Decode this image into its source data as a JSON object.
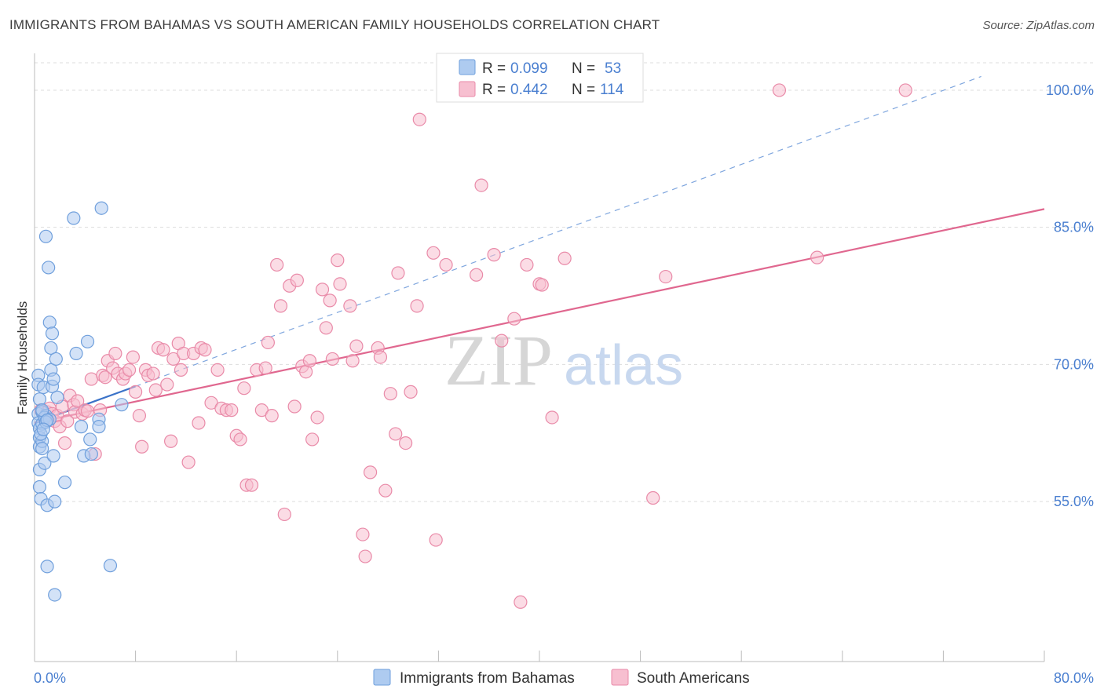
{
  "title": "IMMIGRANTS FROM BAHAMAS VS SOUTH AMERICAN FAMILY HOUSEHOLDS CORRELATION CHART",
  "source": "Source: ZipAtlas.com",
  "watermark": {
    "zip": "ZIP",
    "atlas": "atlas"
  },
  "colors": {
    "blue_fill": "#aecbf0",
    "blue_stroke": "#6f9fdc",
    "blue_line": "#3a72c8",
    "pink_fill": "#f7bfd0",
    "pink_stroke": "#e98aa8",
    "pink_line": "#e0678f",
    "grid": "#dddddd",
    "label": "#4a7fd0"
  },
  "legend": {
    "rows": [
      {
        "r_label": "R = ",
        "r_value": "0.099",
        "n_label": "N = ",
        "n_value": "53",
        "series": "blue"
      },
      {
        "r_label": "R = ",
        "r_value": "0.442",
        "n_label": "N = ",
        "n_value": "114",
        "series": "pink"
      }
    ]
  },
  "chart_data": {
    "type": "scatter",
    "title": "IMMIGRANTS FROM BAHAMAS VS SOUTH AMERICAN FAMILY HOUSEHOLDS CORRELATION CHART",
    "xlabel": "",
    "ylabel": "Family Households",
    "xlim": [
      0,
      80
    ],
    "ylim": [
      37.5,
      103
    ],
    "x_tick_labels": [
      "0.0%",
      "80.0%"
    ],
    "y_ticks": [
      55,
      70,
      85,
      100
    ],
    "y_tick_labels": [
      "55.0%",
      "70.0%",
      "85.0%",
      "100.0%"
    ],
    "legend_position": "top-center",
    "series": [
      {
        "name": "Immigrants from Bahamas",
        "color": "blue",
        "r": 0.099,
        "n": 53,
        "trend": {
          "x": [
            0,
            8
          ],
          "y": [
            63.6,
            67.6
          ],
          "style": "solid"
        },
        "trend_extension": {
          "x": [
            8,
            75
          ],
          "y": [
            67.6,
            101.5
          ],
          "style": "dashed"
        },
        "points": [
          [
            0.3,
            68.8
          ],
          [
            0.3,
            67.8
          ],
          [
            0.4,
            66.2
          ],
          [
            0.3,
            64.6
          ],
          [
            0.3,
            63.6
          ],
          [
            0.4,
            63.0
          ],
          [
            0.4,
            62.0
          ],
          [
            0.4,
            61.0
          ],
          [
            0.4,
            58.5
          ],
          [
            0.4,
            56.6
          ],
          [
            0.5,
            55.3
          ],
          [
            0.6,
            64.8
          ],
          [
            0.6,
            63.5
          ],
          [
            0.6,
            61.6
          ],
          [
            0.6,
            60.8
          ],
          [
            0.7,
            67.5
          ],
          [
            0.8,
            59.2
          ],
          [
            0.9,
            84.0
          ],
          [
            0.9,
            64.4
          ],
          [
            1.0,
            54.6
          ],
          [
            1.0,
            47.9
          ],
          [
            1.1,
            80.6
          ],
          [
            1.2,
            74.6
          ],
          [
            1.3,
            71.8
          ],
          [
            1.3,
            69.4
          ],
          [
            1.4,
            73.4
          ],
          [
            1.4,
            67.6
          ],
          [
            1.5,
            68.4
          ],
          [
            1.5,
            60.0
          ],
          [
            1.6,
            44.8
          ],
          [
            1.6,
            55.0
          ],
          [
            1.7,
            70.6
          ],
          [
            1.8,
            66.4
          ],
          [
            2.4,
            57.1
          ],
          [
            3.1,
            86.0
          ],
          [
            3.3,
            71.2
          ],
          [
            3.7,
            63.2
          ],
          [
            3.9,
            60.0
          ],
          [
            4.2,
            72.5
          ],
          [
            4.4,
            61.8
          ],
          [
            4.5,
            60.2
          ],
          [
            5.1,
            64.0
          ],
          [
            5.1,
            63.2
          ],
          [
            5.3,
            87.1
          ],
          [
            6.0,
            48.0
          ],
          [
            6.9,
            65.6
          ],
          [
            0.5,
            62.4
          ],
          [
            0.8,
            64.2
          ],
          [
            1.2,
            64.0
          ],
          [
            0.9,
            63.7
          ],
          [
            0.6,
            65.0
          ],
          [
            1.0,
            63.9
          ],
          [
            0.7,
            62.9
          ]
        ]
      },
      {
        "name": "South Americans",
        "color": "pink",
        "r": 0.442,
        "n": 114,
        "trend": {
          "x": [
            0,
            80
          ],
          "y": [
            63.6,
            87.0
          ],
          "style": "solid"
        },
        "points": [
          [
            0.5,
            65.0
          ],
          [
            0.8,
            64.0
          ],
          [
            1.0,
            64.8
          ],
          [
            1.2,
            65.2
          ],
          [
            1.4,
            64.6
          ],
          [
            1.6,
            63.8
          ],
          [
            1.8,
            64.4
          ],
          [
            2.0,
            63.2
          ],
          [
            2.2,
            65.4
          ],
          [
            2.4,
            61.4
          ],
          [
            2.8,
            66.6
          ],
          [
            3.1,
            65.6
          ],
          [
            3.2,
            64.8
          ],
          [
            3.4,
            66.0
          ],
          [
            3.8,
            64.6
          ],
          [
            4.0,
            65.0
          ],
          [
            4.2,
            64.9
          ],
          [
            4.5,
            68.4
          ],
          [
            4.8,
            60.2
          ],
          [
            5.2,
            65.0
          ],
          [
            5.4,
            68.8
          ],
          [
            5.6,
            68.6
          ],
          [
            5.8,
            70.4
          ],
          [
            6.2,
            69.6
          ],
          [
            6.4,
            71.2
          ],
          [
            6.6,
            69.0
          ],
          [
            7.0,
            68.4
          ],
          [
            7.2,
            69.0
          ],
          [
            7.5,
            69.4
          ],
          [
            7.8,
            70.8
          ],
          [
            8.0,
            67.0
          ],
          [
            8.3,
            64.4
          ],
          [
            8.5,
            61.0
          ],
          [
            8.8,
            69.4
          ],
          [
            9.0,
            68.8
          ],
          [
            9.4,
            69.0
          ],
          [
            9.6,
            67.2
          ],
          [
            9.8,
            71.8
          ],
          [
            10.2,
            71.6
          ],
          [
            10.5,
            67.8
          ],
          [
            10.8,
            61.6
          ],
          [
            11.0,
            70.6
          ],
          [
            11.4,
            72.3
          ],
          [
            11.6,
            69.4
          ],
          [
            11.8,
            71.2
          ],
          [
            12.2,
            59.3
          ],
          [
            12.6,
            71.2
          ],
          [
            13.0,
            63.6
          ],
          [
            13.2,
            71.8
          ],
          [
            13.5,
            71.6
          ],
          [
            14.0,
            65.8
          ],
          [
            14.5,
            69.4
          ],
          [
            14.8,
            65.2
          ],
          [
            15.2,
            65.0
          ],
          [
            15.6,
            65.0
          ],
          [
            16.0,
            62.2
          ],
          [
            16.3,
            61.8
          ],
          [
            16.6,
            67.4
          ],
          [
            16.8,
            56.8
          ],
          [
            17.2,
            56.8
          ],
          [
            17.6,
            69.4
          ],
          [
            18.0,
            65.0
          ],
          [
            18.3,
            69.6
          ],
          [
            18.5,
            72.4
          ],
          [
            18.8,
            64.4
          ],
          [
            19.2,
            80.9
          ],
          [
            19.5,
            76.4
          ],
          [
            19.8,
            53.6
          ],
          [
            20.2,
            78.6
          ],
          [
            20.6,
            65.4
          ],
          [
            20.8,
            79.2
          ],
          [
            21.2,
            69.8
          ],
          [
            21.5,
            69.2
          ],
          [
            21.8,
            70.4
          ],
          [
            22.0,
            61.8
          ],
          [
            22.4,
            64.2
          ],
          [
            22.8,
            78.2
          ],
          [
            23.1,
            74.0
          ],
          [
            23.4,
            77.0
          ],
          [
            23.6,
            70.6
          ],
          [
            24.0,
            81.4
          ],
          [
            24.2,
            78.8
          ],
          [
            25.0,
            76.4
          ],
          [
            25.2,
            70.4
          ],
          [
            25.5,
            72.0
          ],
          [
            26.0,
            51.4
          ],
          [
            26.2,
            49.0
          ],
          [
            26.6,
            58.2
          ],
          [
            27.2,
            71.8
          ],
          [
            27.4,
            70.8
          ],
          [
            27.8,
            56.2
          ],
          [
            28.2,
            66.8
          ],
          [
            28.6,
            62.4
          ],
          [
            28.8,
            80.0
          ],
          [
            29.4,
            61.4
          ],
          [
            29.8,
            67.0
          ],
          [
            30.3,
            76.4
          ],
          [
            30.5,
            96.8
          ],
          [
            31.6,
            82.2
          ],
          [
            31.8,
            50.8
          ],
          [
            32.6,
            80.9
          ],
          [
            35.0,
            79.8
          ],
          [
            35.4,
            89.6
          ],
          [
            36.4,
            82.0
          ],
          [
            37.0,
            72.6
          ],
          [
            38.0,
            75.0
          ],
          [
            39.0,
            80.9
          ],
          [
            40.0,
            78.8
          ],
          [
            40.2,
            78.7
          ],
          [
            41.0,
            64.2
          ],
          [
            42.0,
            81.6
          ],
          [
            49.0,
            55.4
          ],
          [
            50.0,
            79.6
          ],
          [
            62.0,
            81.7
          ],
          [
            59.0,
            100.0
          ],
          [
            69.0,
            100.0
          ],
          [
            38.5,
            44.0
          ],
          [
            2.6,
            63.8
          ]
        ]
      }
    ]
  },
  "bottom_legend": [
    {
      "label": "Immigrants from Bahamas",
      "color": "blue"
    },
    {
      "label": "South Americans",
      "color": "pink"
    }
  ]
}
